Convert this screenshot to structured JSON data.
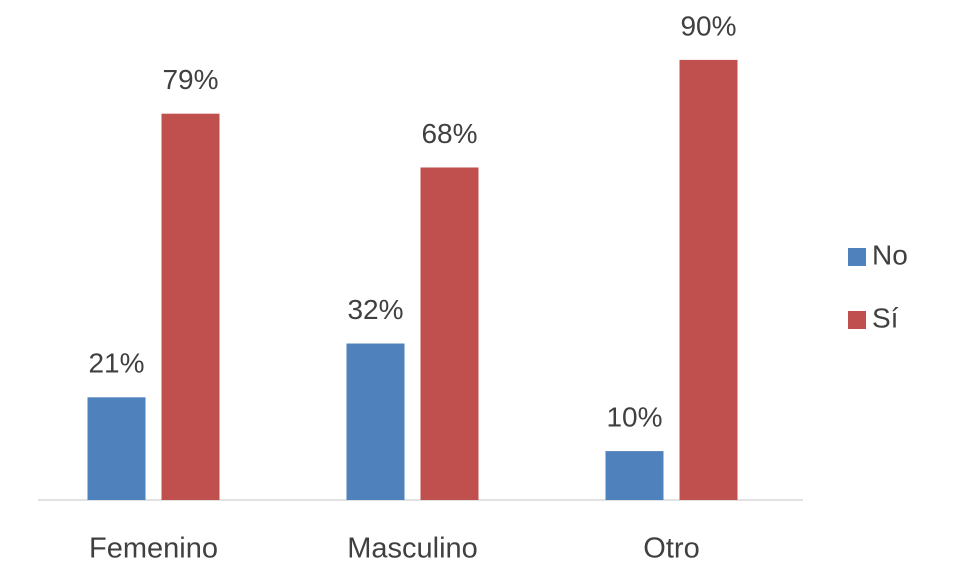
{
  "chart_data": {
    "type": "bar",
    "categories": [
      "Femenino",
      "Masculino",
      "Otro"
    ],
    "series": [
      {
        "name": "No",
        "color": "#4f81bd",
        "values": [
          21,
          32,
          10
        ],
        "value_labels": [
          "21%",
          "32%",
          "10%"
        ]
      },
      {
        "name": "Sí",
        "color": "#c0504d",
        "values": [
          79,
          68,
          90
        ],
        "value_labels": [
          "79%",
          "68%",
          "90%"
        ]
      }
    ],
    "ylim": [
      0,
      100
    ],
    "legend": "right"
  }
}
